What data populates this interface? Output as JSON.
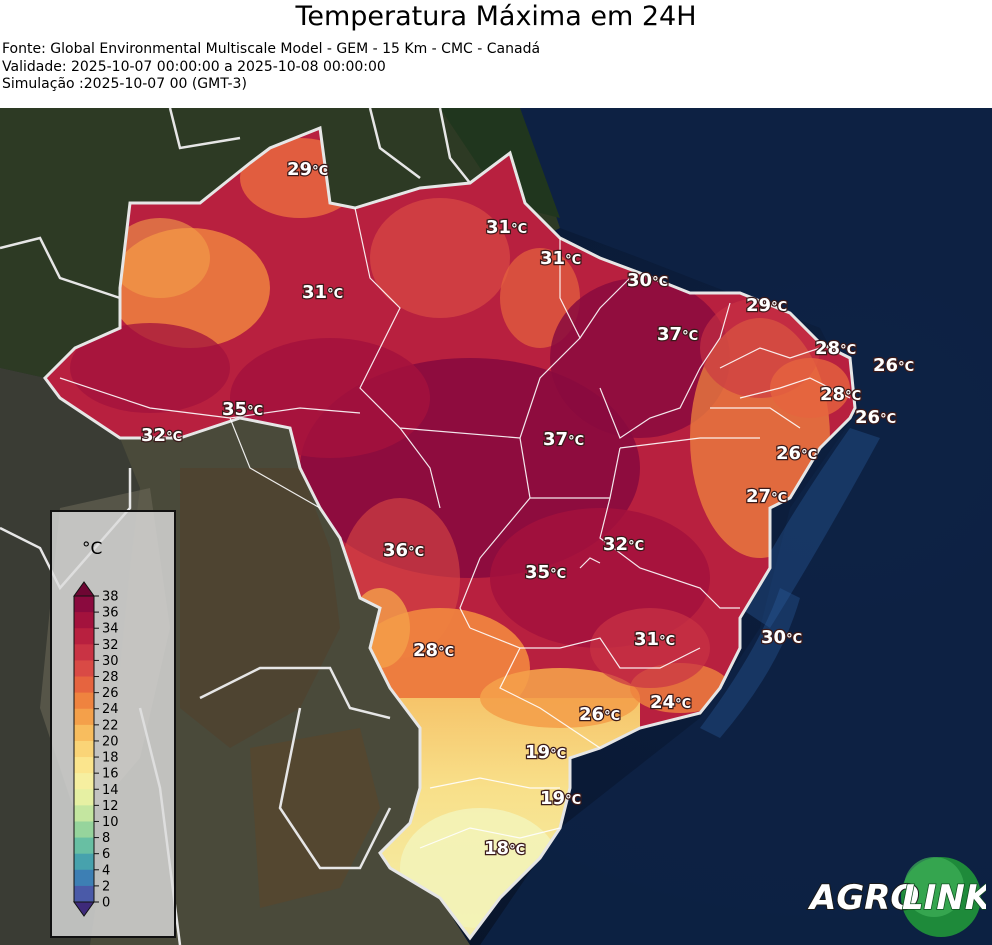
{
  "header": {
    "title": "Temperatura Máxima em 24H",
    "source": "Fonte: Global Environmental Multiscale Model - GEM - 15 Km - CMC - Canadá",
    "validity": "Validade: 2025-10-07 00:00:00 a 2025-10-08 00:00:00",
    "simulation": "Simulação :2025-10-07 00 (GMT-3)"
  },
  "map": {
    "variable": "temperatura máxima",
    "labels": [
      {
        "value": "29",
        "unit": "°C"
      },
      {
        "value": "31",
        "unit": "°C"
      },
      {
        "value": "31",
        "unit": "°C"
      },
      {
        "value": "31",
        "unit": "°C"
      },
      {
        "value": "30",
        "unit": "°C"
      },
      {
        "value": "29",
        "unit": "°C"
      },
      {
        "value": "37",
        "unit": "°C"
      },
      {
        "value": "28",
        "unit": "°C"
      },
      {
        "value": "26",
        "unit": "°C"
      },
      {
        "value": "28",
        "unit": "°C"
      },
      {
        "value": "26",
        "unit": "°C"
      },
      {
        "value": "35",
        "unit": "°C"
      },
      {
        "value": "32",
        "unit": "°C"
      },
      {
        "value": "37",
        "unit": "°C"
      },
      {
        "value": "26",
        "unit": "°C"
      },
      {
        "value": "27",
        "unit": "°C"
      },
      {
        "value": "36",
        "unit": "°C"
      },
      {
        "value": "32",
        "unit": "°C"
      },
      {
        "value": "35",
        "unit": "°C"
      },
      {
        "value": "31",
        "unit": "°C"
      },
      {
        "value": "30",
        "unit": "°C"
      },
      {
        "value": "28",
        "unit": "°C"
      },
      {
        "value": "24",
        "unit": "°C"
      },
      {
        "value": "26",
        "unit": "°C"
      },
      {
        "value": "19",
        "unit": "°C"
      },
      {
        "value": "19",
        "unit": "°C"
      },
      {
        "value": "18",
        "unit": "°C"
      }
    ]
  },
  "colorbar": {
    "title": "°C",
    "ticks": [
      "38",
      "36",
      "34",
      "32",
      "30",
      "28",
      "26",
      "24",
      "22",
      "20",
      "18",
      "16",
      "14",
      "12",
      "10",
      "8",
      "6",
      "4",
      "2",
      "0"
    ],
    "colors": [
      "#8a0a3e",
      "#a3123d",
      "#b8203f",
      "#c93344",
      "#d94a45",
      "#e6643f",
      "#ef833f",
      "#f4a04a",
      "#f8bd5e",
      "#fad477",
      "#fbe58d",
      "#f6efa0",
      "#e6f0a3",
      "#c4e6a0",
      "#96d49c",
      "#68bfa3",
      "#47a2ad",
      "#3d7fb4",
      "#4a5aa8",
      "#4b3a8e"
    ],
    "extend_top": "#6e0633",
    "extend_bottom": "#3e2a7a"
  },
  "logo": {
    "part1": "AGRO",
    "part2": "LINK"
  }
}
